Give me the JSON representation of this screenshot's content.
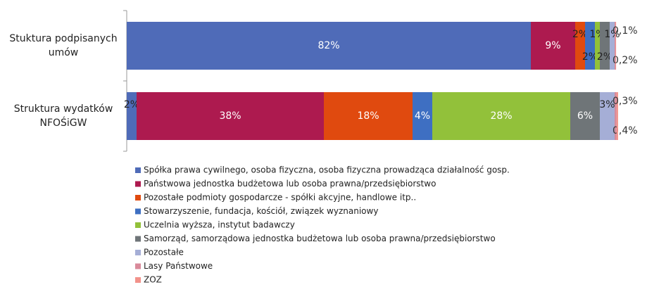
{
  "chart_data": {
    "type": "stacked-bar-horizontal",
    "categories": [
      "Stuktura podpisanych umów",
      "Struktura wydatków NFOŚiGW"
    ],
    "xlim": [
      0,
      100
    ],
    "series": [
      {
        "name": "Spółka prawa cywilnego, osoba fizyczna, osoba fizyczna prowadząca działalność gosp.",
        "color": "#4f6bb8",
        "values": [
          82,
          2
        ],
        "value_labels": [
          "82%",
          "2%"
        ]
      },
      {
        "name": "Państwowa jednostka budżetowa lub osoba prawna/przedsiębiorstwo",
        "color": "#ad1a4f",
        "values": [
          9,
          38
        ],
        "value_labels": [
          "9%",
          "38%"
        ]
      },
      {
        "name": "Pozostałe podmioty gospodarcze - spółki akcyjne, handlowe itp..",
        "color": "#e04a0f",
        "values": [
          2,
          18
        ],
        "value_labels": [
          "2%",
          "18%"
        ]
      },
      {
        "name": "Stowarzyszenie, fundacja, kościół, związek wyznaniowy",
        "color": "#3e6fc2",
        "values": [
          2,
          4
        ],
        "value_labels": [
          "2%",
          "4%"
        ]
      },
      {
        "name": "Uczelnia wyższa, instytut badawczy",
        "color": "#92c13a",
        "values": [
          1,
          28
        ],
        "value_labels": [
          "1%",
          "28%"
        ]
      },
      {
        "name": "Samorząd, samorządowa jednostka budżetowa lub osoba prawna/przedsiębiorstwo",
        "color": "#6f7578",
        "values": [
          2,
          6
        ],
        "value_labels": [
          "2%",
          "6%"
        ]
      },
      {
        "name": "Pozostałe",
        "color": "#a5aed6",
        "values": [
          1,
          3
        ],
        "value_labels": [
          "1%",
          "3%"
        ]
      },
      {
        "name": "Lasy Państwowe",
        "color": "#d98a9a",
        "values": [
          0.2,
          0.4
        ],
        "value_labels": [
          "0,2%",
          "0,4%"
        ]
      },
      {
        "name": "ZOZ",
        "color": "#f2928a",
        "values": [
          0.1,
          0.3
        ],
        "value_labels": [
          "0,1%",
          "0,3%"
        ]
      }
    ]
  }
}
